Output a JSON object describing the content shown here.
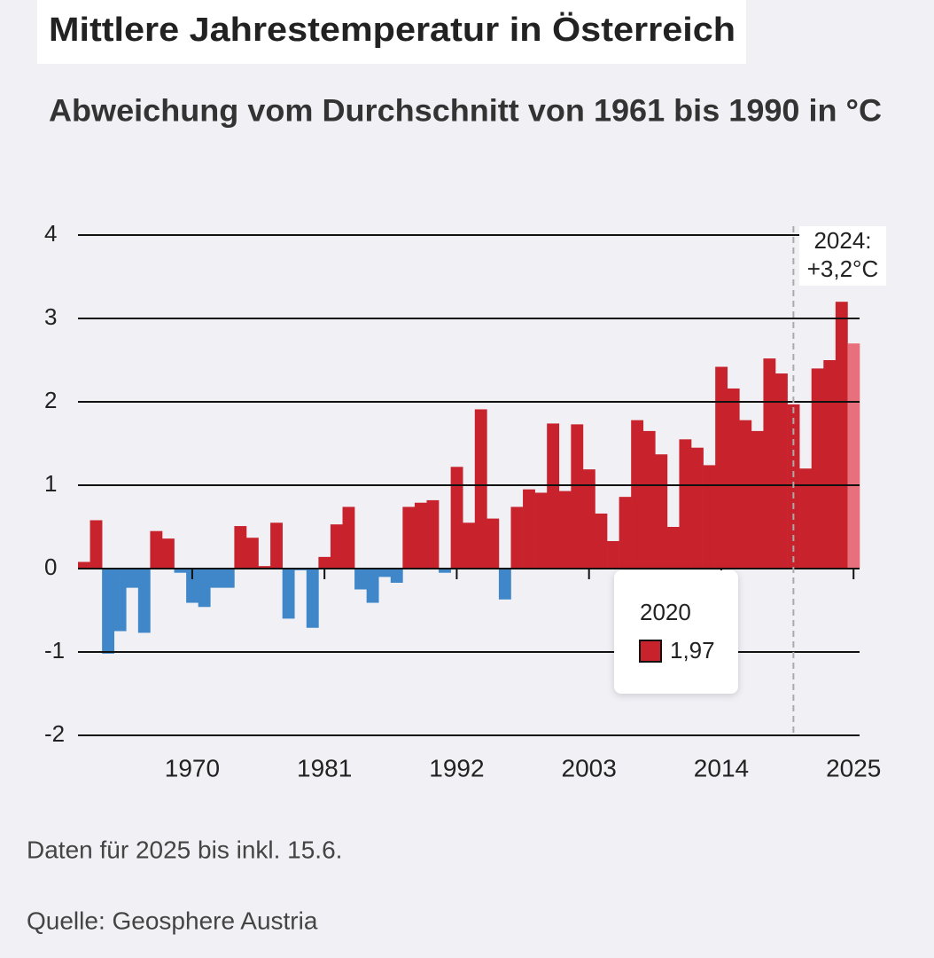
{
  "chart_data": {
    "type": "bar",
    "title": "Mittlere Jahrestemperatur in Österreich",
    "subtitle": "Abweichung vom Durchschnitt von 1961 bis 1990 in °C",
    "x": [
      1961,
      1962,
      1963,
      1964,
      1965,
      1966,
      1967,
      1968,
      1969,
      1970,
      1971,
      1972,
      1973,
      1974,
      1975,
      1976,
      1977,
      1978,
      1979,
      1980,
      1981,
      1982,
      1983,
      1984,
      1985,
      1986,
      1987,
      1988,
      1989,
      1990,
      1991,
      1992,
      1993,
      1994,
      1995,
      1996,
      1997,
      1998,
      1999,
      2000,
      2001,
      2002,
      2003,
      2004,
      2005,
      2006,
      2007,
      2008,
      2009,
      2010,
      2011,
      2012,
      2013,
      2014,
      2015,
      2016,
      2017,
      2018,
      2019,
      2020,
      2021,
      2022,
      2023,
      2024,
      2025
    ],
    "values": [
      0.08,
      0.58,
      -1.02,
      -0.75,
      -0.23,
      -0.77,
      0.45,
      0.36,
      -0.05,
      -0.41,
      -0.46,
      -0.23,
      -0.23,
      0.51,
      0.37,
      0.03,
      0.55,
      -0.6,
      -0.02,
      -0.71,
      0.14,
      0.53,
      0.74,
      -0.25,
      -0.41,
      -0.1,
      -0.17,
      0.74,
      0.79,
      0.82,
      -0.05,
      1.22,
      0.55,
      1.91,
      0.6,
      -0.37,
      0.74,
      0.95,
      0.91,
      1.74,
      0.93,
      1.73,
      1.19,
      0.66,
      0.33,
      0.86,
      1.78,
      1.65,
      1.37,
      0.5,
      1.55,
      1.45,
      1.24,
      2.42,
      2.16,
      1.78,
      1.65,
      2.52,
      2.34,
      1.97,
      1.2,
      2.4,
      2.5,
      3.2,
      2.7
    ],
    "color_positive": "#c8232c",
    "color_negative": "#3f87c8",
    "color_partial": "#e8707c",
    "partial_x": 2025,
    "xlim": [
      1960.5,
      2025.5
    ],
    "xticks": [
      1970,
      1981,
      1992,
      2003,
      2014,
      2025
    ],
    "ylim": [
      -2,
      4
    ],
    "yticks": [
      -2,
      -1,
      0,
      1,
      2,
      3,
      4
    ],
    "grid": true,
    "annotation": {
      "lines": [
        "2024:",
        "+3,2°C"
      ]
    },
    "tooltip": {
      "x": 2020,
      "value": 1.97,
      "value_label": "1,97"
    },
    "notes": [
      "Daten für 2025 bis inkl. 15.6.",
      "Quelle: Geosphere Austria"
    ]
  }
}
